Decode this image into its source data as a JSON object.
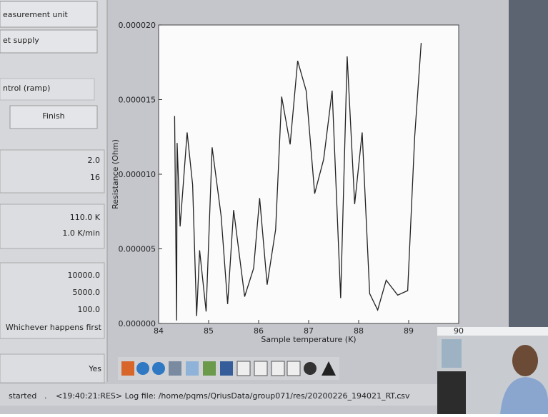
{
  "left_panel": {
    "items": [
      "easurement unit",
      "et supply",
      "ntrol (ramp)",
      "Finish",
      "2.0",
      "16",
      "110.0 K",
      "1.0 K/min",
      "10000.0",
      "5000.0",
      "100.0",
      "Whichever happens first",
      "Yes"
    ]
  },
  "chart_data": {
    "type": "line",
    "x_label": "Sample temperature (K)",
    "y_label": "Resistance (Ohm)",
    "x": [
      84.32,
      84.36,
      84.37,
      84.43,
      84.57,
      84.68,
      84.76,
      84.82,
      84.95,
      85.07,
      85.25,
      85.38,
      85.5,
      85.72,
      85.9,
      86.02,
      86.17,
      86.34,
      86.46,
      86.63,
      86.78,
      86.95,
      87.12,
      87.3,
      87.47,
      87.64,
      87.77,
      87.92,
      88.07,
      88.22,
      88.38,
      88.55,
      88.78,
      88.98,
      89.12,
      89.25
    ],
    "series": [
      {
        "color": "#222222",
        "values": [
          1.39e-05,
          2e-07,
          1.21e-05,
          6.5e-06,
          1.28e-05,
          9.3e-06,
          5e-07,
          4.9e-06,
          8e-07,
          1.18e-05,
          7.2e-06,
          1.3e-06,
          7.6e-06,
          1.8e-06,
          3.7e-06,
          8.4e-06,
          2.6e-06,
          6.3e-06,
          1.52e-05,
          1.2e-05,
          1.76e-05,
          1.56e-05,
          8.7e-06,
          1.1e-05,
          1.56e-05,
          1.7e-06,
          1.79e-05,
          8e-06,
          1.28e-05,
          2e-06,
          9e-07,
          2.9e-06,
          1.9e-06,
          2.2e-06,
          1.25e-05,
          1.88e-05
        ]
      }
    ],
    "xlim": [
      84,
      90
    ],
    "ylim": [
      0,
      2e-05
    ],
    "xticks": [
      84,
      85,
      86,
      87,
      88,
      89,
      90
    ],
    "yticks": [
      {
        "value": 0,
        "label": "0.000000"
      },
      {
        "value": 5e-06,
        "label": "0.000005"
      },
      {
        "value": 1e-05,
        "label": "0.000010"
      },
      {
        "value": 1.5e-05,
        "label": "0.000015"
      },
      {
        "value": 2e-05,
        "label": "0.000020"
      }
    ]
  },
  "status_bar": {
    "parts": [
      "started",
      ".",
      "<19:40:21:RES> Log file: /home/pqms/QriusData/group071/res/20200226_194021_RT.csv",
      ". ..."
    ]
  }
}
